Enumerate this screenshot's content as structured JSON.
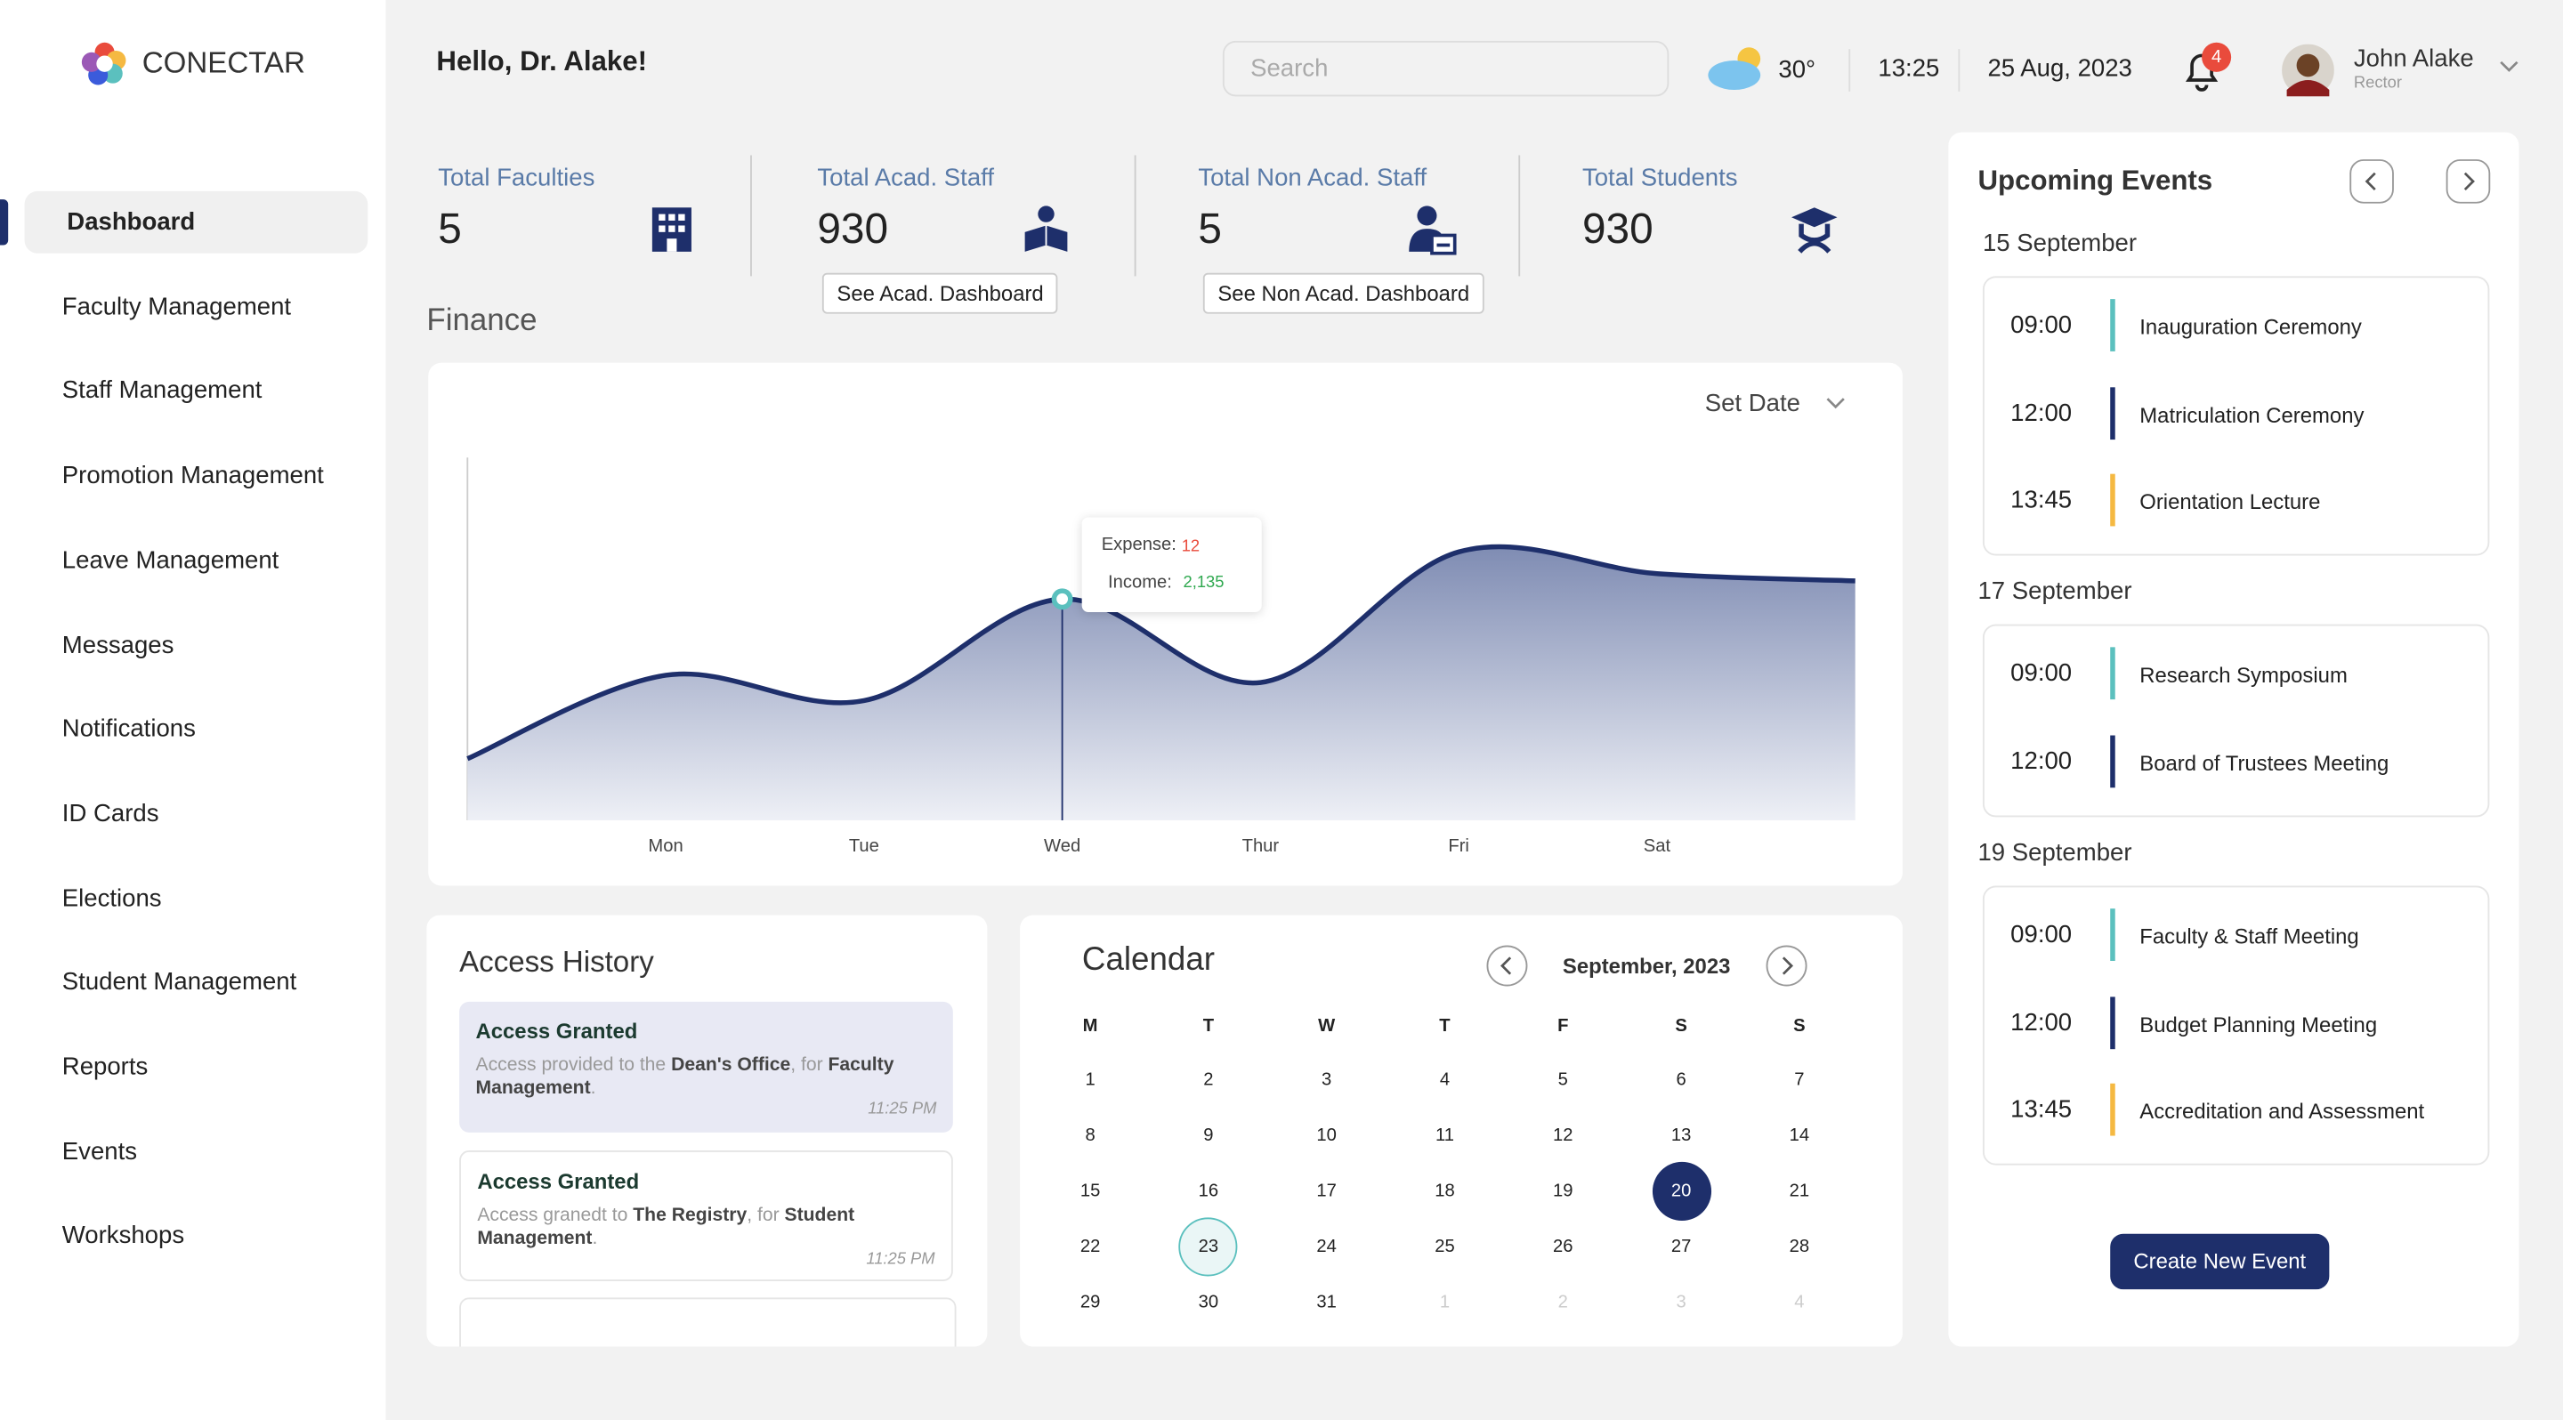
{
  "sidebar": {
    "brand": "CONECTAR",
    "active": 0,
    "nav": [
      "Dashboard",
      "Faculty Management",
      "Staff Management",
      "Promotion Management",
      "Leave Management",
      "Messages",
      "Notifications",
      "ID Cards",
      "Elections",
      "Student Management",
      "Reports",
      "Events",
      "Workshops"
    ]
  },
  "header": {
    "greeting": "Hello, Dr. Alake!",
    "search_placeholder": "Search",
    "temperature": "30°",
    "time": "13:25",
    "date": "25 Aug, 2023",
    "notifications": 4,
    "user": {
      "name": "John Alake",
      "role": "Rector"
    }
  },
  "stats": [
    {
      "label": "Total Faculties",
      "value": 5
    },
    {
      "label": "Total Acad. Staff",
      "value": 930,
      "button": "See Acad. Dashboard"
    },
    {
      "label": "Total Non Acad. Staff",
      "value": 5,
      "button": "See Non Acad. Dashboard"
    },
    {
      "label": "Total Students",
      "value": 930
    }
  ],
  "finance": {
    "title": "Finance",
    "filter": "Set Date",
    "chart": {
      "type": "area",
      "categories": [
        null,
        "Mon",
        "Tue",
        "Wed",
        "Thur",
        "Fri",
        "Sat",
        null
      ],
      "values": [
        17,
        40,
        33,
        61,
        38,
        74,
        68,
        66
      ],
      "ylim": [
        0,
        100
      ],
      "color": "#1e2f6b",
      "highlight": 3
    },
    "tooltip": {
      "expense_label": "Expense:",
      "expense": 12,
      "income_label": "Income:",
      "income": {
        "value": 2135,
        "label": "2,135"
      }
    }
  },
  "access_history": {
    "title": "Access History",
    "items": [
      {
        "title": "Access Granted",
        "parts": [
          "Access provided to the ",
          "Dean's Office",
          ", for ",
          "Faculty Management",
          "."
        ],
        "time": "11:25 PM"
      },
      {
        "title": "Access Granted",
        "parts": [
          "Access granedt to ",
          "The Registry",
          ", for ",
          "Student Management",
          "."
        ],
        "time": "11:25 PM"
      }
    ]
  },
  "calendar": {
    "title": "Calendar",
    "month": "September, 2023",
    "weekdays": [
      "M",
      "T",
      "W",
      "T",
      "F",
      "S",
      "S"
    ],
    "weeks": [
      [
        1,
        2,
        3,
        4,
        5,
        6,
        7
      ],
      [
        8,
        9,
        10,
        11,
        12,
        13,
        14
      ],
      [
        15,
        16,
        17,
        18,
        19,
        20,
        21
      ],
      [
        22,
        23,
        24,
        25,
        26,
        27,
        28
      ],
      [
        29,
        30,
        31,
        1,
        2,
        3,
        4
      ]
    ],
    "trailing": 4,
    "selected": 20,
    "today": 23
  },
  "events": {
    "title": "Upcoming Events",
    "button": "Create New Event",
    "groups": [
      {
        "date": "15 September",
        "events": [
          {
            "time": "09:00",
            "name": "Inauguration Ceremony",
            "color": "#5bc0be"
          },
          {
            "time": "12:00",
            "name": "Matriculation Ceremony",
            "color": "#1e2f6b"
          },
          {
            "time": "13:45",
            "name": "Orientation Lecture",
            "color": "#f5b942"
          }
        ]
      },
      {
        "date": "17 September",
        "events": [
          {
            "time": "09:00",
            "name": "Research Symposium",
            "color": "#5bc0be"
          },
          {
            "time": "12:00",
            "name": "Board of Trustees Meeting",
            "color": "#1e2f6b"
          }
        ]
      },
      {
        "date": "19 September",
        "events": [
          {
            "time": "09:00",
            "name": "Faculty & Staff Meeting",
            "color": "#5bc0be"
          },
          {
            "time": "12:00",
            "name": "Budget Planning Meeting",
            "color": "#1e2f6b"
          },
          {
            "time": "13:45",
            "name": "Accreditation and Assessment",
            "color": "#f5b942"
          }
        ]
      }
    ]
  }
}
